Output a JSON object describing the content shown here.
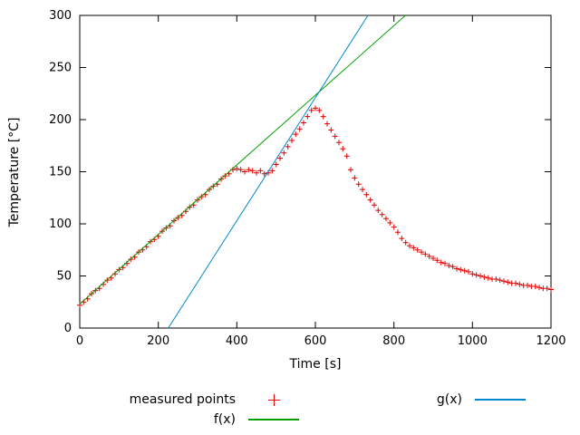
{
  "chart_data": {
    "type": "scatter",
    "title": "",
    "xlabel": "Time [s]",
    "ylabel": "Temperature [°C]",
    "xlim": [
      0,
      1200
    ],
    "ylim": [
      0,
      300
    ],
    "xticks": [
      0,
      200,
      400,
      600,
      800,
      1000,
      1200
    ],
    "yticks": [
      0,
      50,
      100,
      150,
      200,
      250,
      300
    ],
    "grid": false,
    "legend_position": "below-plot",
    "series": [
      {
        "name": "measured points",
        "kind": "points",
        "marker": "plus",
        "color": "#dd0000",
        "points": [
          [
            0,
            22
          ],
          [
            10,
            25
          ],
          [
            20,
            28
          ],
          [
            30,
            33
          ],
          [
            40,
            36
          ],
          [
            50,
            38
          ],
          [
            60,
            42
          ],
          [
            70,
            46
          ],
          [
            80,
            48
          ],
          [
            90,
            52
          ],
          [
            100,
            56
          ],
          [
            110,
            58
          ],
          [
            120,
            62
          ],
          [
            130,
            66
          ],
          [
            140,
            68
          ],
          [
            150,
            73
          ],
          [
            160,
            75
          ],
          [
            170,
            78
          ],
          [
            180,
            83
          ],
          [
            190,
            85
          ],
          [
            200,
            88
          ],
          [
            210,
            93
          ],
          [
            220,
            96
          ],
          [
            230,
            98
          ],
          [
            240,
            103
          ],
          [
            250,
            106
          ],
          [
            260,
            108
          ],
          [
            270,
            112
          ],
          [
            280,
            116
          ],
          [
            290,
            118
          ],
          [
            300,
            123
          ],
          [
            310,
            126
          ],
          [
            320,
            128
          ],
          [
            330,
            133
          ],
          [
            340,
            136
          ],
          [
            350,
            138
          ],
          [
            360,
            143
          ],
          [
            370,
            146
          ],
          [
            380,
            148
          ],
          [
            390,
            152
          ],
          [
            400,
            153
          ],
          [
            410,
            152
          ],
          [
            420,
            150
          ],
          [
            430,
            152
          ],
          [
            440,
            151
          ],
          [
            450,
            149
          ],
          [
            460,
            151
          ],
          [
            470,
            148
          ],
          [
            480,
            149
          ],
          [
            490,
            151
          ],
          [
            500,
            157
          ],
          [
            510,
            163
          ],
          [
            520,
            168
          ],
          [
            530,
            174
          ],
          [
            540,
            180
          ],
          [
            550,
            186
          ],
          [
            560,
            191
          ],
          [
            570,
            197
          ],
          [
            580,
            203
          ],
          [
            590,
            209
          ],
          [
            600,
            211
          ],
          [
            610,
            209
          ],
          [
            620,
            203
          ],
          [
            630,
            196
          ],
          [
            640,
            190
          ],
          [
            650,
            184
          ],
          [
            660,
            178
          ],
          [
            670,
            172
          ],
          [
            680,
            165
          ],
          [
            690,
            152
          ],
          [
            700,
            144
          ],
          [
            710,
            138
          ],
          [
            720,
            133
          ],
          [
            730,
            128
          ],
          [
            740,
            123
          ],
          [
            750,
            118
          ],
          [
            760,
            113
          ],
          [
            770,
            109
          ],
          [
            780,
            105
          ],
          [
            790,
            101
          ],
          [
            800,
            97
          ],
          [
            810,
            92
          ],
          [
            820,
            86
          ],
          [
            830,
            82
          ],
          [
            840,
            79
          ],
          [
            850,
            77
          ],
          [
            860,
            75
          ],
          [
            870,
            73
          ],
          [
            880,
            71
          ],
          [
            890,
            69
          ],
          [
            900,
            67
          ],
          [
            910,
            65
          ],
          [
            920,
            63
          ],
          [
            930,
            62
          ],
          [
            940,
            60
          ],
          [
            950,
            59
          ],
          [
            960,
            57
          ],
          [
            970,
            56
          ],
          [
            980,
            55
          ],
          [
            990,
            54
          ],
          [
            1000,
            52
          ],
          [
            1010,
            51
          ],
          [
            1020,
            50
          ],
          [
            1030,
            49
          ],
          [
            1040,
            48
          ],
          [
            1050,
            47
          ],
          [
            1060,
            47
          ],
          [
            1070,
            46
          ],
          [
            1080,
            45
          ],
          [
            1090,
            44
          ],
          [
            1100,
            43
          ],
          [
            1110,
            43
          ],
          [
            1120,
            42
          ],
          [
            1130,
            41
          ],
          [
            1140,
            41
          ],
          [
            1150,
            40
          ],
          [
            1160,
            40
          ],
          [
            1170,
            39
          ],
          [
            1180,
            38
          ],
          [
            1190,
            38
          ],
          [
            1200,
            37
          ]
        ]
      },
      {
        "name": "f(x)",
        "kind": "line",
        "color": "#00a000",
        "fit": {
          "slope": 0.334,
          "intercept": 23
        }
      },
      {
        "name": "g(x)",
        "kind": "line",
        "color": "#0088cc",
        "fit": {
          "slope": 0.59,
          "intercept": -133
        }
      }
    ]
  }
}
